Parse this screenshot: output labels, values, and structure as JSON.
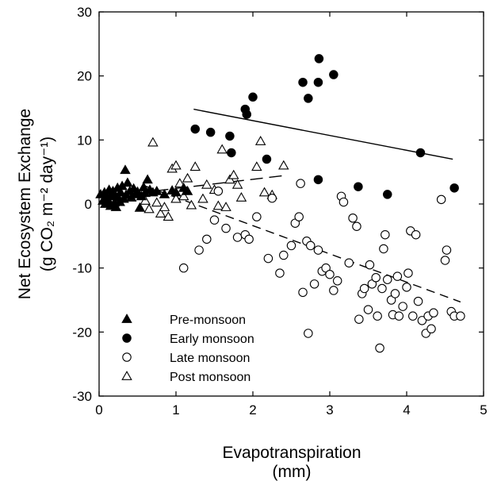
{
  "chart_data": {
    "type": "scatter",
    "xlabel_line1": "Evapotranspiration",
    "xlabel_line2": "(mm)",
    "ylabel_line1": "Net Ecosystem Exchange",
    "ylabel_line2": "(g CO₂ m⁻² day⁻¹)",
    "xlim": [
      0,
      5
    ],
    "ylim": [
      -30,
      30
    ],
    "xticks": [
      0,
      1,
      2,
      3,
      4,
      5
    ],
    "yticks": [
      -30,
      -20,
      -10,
      0,
      10,
      20,
      30
    ],
    "grid": false,
    "legend_position": "bottom-left",
    "series": [
      {
        "name": "Pre-monsoon",
        "marker": "triangle-filled",
        "points": [
          [
            0.02,
            1.5
          ],
          [
            0.05,
            0.5
          ],
          [
            0.07,
            1.8
          ],
          [
            0.08,
            0.0
          ],
          [
            0.1,
            1.0
          ],
          [
            0.12,
            0.5
          ],
          [
            0.13,
            2.2
          ],
          [
            0.15,
            -0.3
          ],
          [
            0.16,
            1.2
          ],
          [
            0.18,
            2.0
          ],
          [
            0.2,
            0.2
          ],
          [
            0.2,
            1.6
          ],
          [
            0.22,
            -0.5
          ],
          [
            0.24,
            2.5
          ],
          [
            0.25,
            1.0
          ],
          [
            0.27,
            0.3
          ],
          [
            0.28,
            1.8
          ],
          [
            0.3,
            2.8
          ],
          [
            0.32,
            0.8
          ],
          [
            0.34,
            5.3
          ],
          [
            0.35,
            1.4
          ],
          [
            0.37,
            3.3
          ],
          [
            0.4,
            2.0
          ],
          [
            0.42,
            1.0
          ],
          [
            0.45,
            2.4
          ],
          [
            0.48,
            1.5
          ],
          [
            0.5,
            1.9
          ],
          [
            0.53,
            -0.6
          ],
          [
            0.55,
            1.2
          ],
          [
            0.58,
            2.6
          ],
          [
            0.6,
            1.7
          ],
          [
            0.63,
            3.8
          ],
          [
            0.66,
            2.2
          ],
          [
            0.7,
            1.8
          ],
          [
            0.75,
            2.0
          ],
          [
            0.85,
            1.5
          ],
          [
            0.95,
            2.1
          ],
          [
            1.0,
            1.8
          ],
          [
            1.1,
            2.5
          ],
          [
            1.15,
            2.0
          ]
        ]
      },
      {
        "name": "Early monsoon",
        "marker": "circle-filled",
        "points": [
          [
            1.25,
            11.7
          ],
          [
            1.45,
            11.2
          ],
          [
            1.7,
            10.6
          ],
          [
            1.72,
            8.0
          ],
          [
            1.9,
            14.8
          ],
          [
            1.92,
            14.0
          ],
          [
            2.0,
            16.7
          ],
          [
            2.18,
            7.0
          ],
          [
            2.65,
            19.0
          ],
          [
            2.72,
            16.5
          ],
          [
            2.85,
            19.0
          ],
          [
            2.86,
            22.7
          ],
          [
            3.05,
            20.2
          ],
          [
            2.85,
            3.8
          ],
          [
            3.37,
            2.7
          ],
          [
            3.75,
            1.5
          ],
          [
            4.18,
            8.0
          ],
          [
            4.62,
            2.5
          ]
        ]
      },
      {
        "name": "Late monsoon",
        "marker": "circle-open",
        "points": [
          [
            1.1,
            -10.0
          ],
          [
            1.3,
            -7.2
          ],
          [
            1.4,
            -5.5
          ],
          [
            1.5,
            -2.5
          ],
          [
            1.55,
            2.0
          ],
          [
            1.65,
            -3.8
          ],
          [
            1.8,
            -5.2
          ],
          [
            1.9,
            -4.8
          ],
          [
            1.95,
            -5.5
          ],
          [
            2.05,
            -2.0
          ],
          [
            2.2,
            -8.5
          ],
          [
            2.25,
            0.9
          ],
          [
            2.35,
            -10.8
          ],
          [
            2.4,
            -8.0
          ],
          [
            2.5,
            -6.5
          ],
          [
            2.55,
            -3.0
          ],
          [
            2.6,
            -2.0
          ],
          [
            2.62,
            3.2
          ],
          [
            2.65,
            -13.8
          ],
          [
            2.7,
            -5.8
          ],
          [
            2.72,
            -20.2
          ],
          [
            2.75,
            -6.5
          ],
          [
            2.8,
            -12.5
          ],
          [
            2.85,
            -7.2
          ],
          [
            2.9,
            -10.5
          ],
          [
            2.95,
            -10.0
          ],
          [
            3.0,
            -11.0
          ],
          [
            3.05,
            -13.5
          ],
          [
            3.1,
            -12.0
          ],
          [
            3.15,
            1.2
          ],
          [
            3.18,
            0.3
          ],
          [
            3.25,
            -9.2
          ],
          [
            3.3,
            -2.2
          ],
          [
            3.35,
            -3.5
          ],
          [
            3.38,
            -18.0
          ],
          [
            3.42,
            -14.0
          ],
          [
            3.45,
            -13.2
          ],
          [
            3.5,
            -16.5
          ],
          [
            3.52,
            -9.5
          ],
          [
            3.55,
            -12.5
          ],
          [
            3.6,
            -11.5
          ],
          [
            3.62,
            -17.5
          ],
          [
            3.65,
            -22.5
          ],
          [
            3.68,
            -13.2
          ],
          [
            3.7,
            -7.0
          ],
          [
            3.72,
            -4.8
          ],
          [
            3.75,
            -11.8
          ],
          [
            3.8,
            -15.0
          ],
          [
            3.82,
            -17.3
          ],
          [
            3.85,
            -14.0
          ],
          [
            3.88,
            -11.3
          ],
          [
            3.9,
            -17.5
          ],
          [
            3.95,
            -16.0
          ],
          [
            4.0,
            -13.0
          ],
          [
            4.02,
            -10.8
          ],
          [
            4.05,
            -4.2
          ],
          [
            4.08,
            -17.5
          ],
          [
            4.12,
            -4.8
          ],
          [
            4.15,
            -15.2
          ],
          [
            4.2,
            -18.2
          ],
          [
            4.25,
            -20.2
          ],
          [
            4.28,
            -17.5
          ],
          [
            4.32,
            -19.5
          ],
          [
            4.35,
            -17.0
          ],
          [
            4.45,
            0.7
          ],
          [
            4.5,
            -8.8
          ],
          [
            4.52,
            -7.2
          ],
          [
            4.58,
            -16.8
          ],
          [
            4.62,
            -17.5
          ],
          [
            4.7,
            -17.5
          ]
        ]
      },
      {
        "name": "Post monsoon",
        "marker": "triangle-open",
        "points": [
          [
            0.6,
            0.5
          ],
          [
            0.65,
            -0.8
          ],
          [
            0.7,
            9.6
          ],
          [
            0.75,
            0.2
          ],
          [
            0.8,
            -1.5
          ],
          [
            0.85,
            -0.5
          ],
          [
            0.9,
            -2.0
          ],
          [
            0.95,
            5.5
          ],
          [
            1.0,
            0.8
          ],
          [
            1.0,
            6.0
          ],
          [
            1.05,
            3.2
          ],
          [
            1.1,
            1.2
          ],
          [
            1.15,
            4.0
          ],
          [
            1.2,
            -0.2
          ],
          [
            1.25,
            5.8
          ],
          [
            1.35,
            0.8
          ],
          [
            1.4,
            3.0
          ],
          [
            1.5,
            2.2
          ],
          [
            1.55,
            -0.3
          ],
          [
            1.6,
            8.5
          ],
          [
            1.65,
            -0.5
          ],
          [
            1.7,
            3.8
          ],
          [
            1.75,
            4.5
          ],
          [
            1.8,
            3.0
          ],
          [
            1.85,
            1.0
          ],
          [
            2.05,
            5.8
          ],
          [
            2.1,
            9.8
          ],
          [
            2.15,
            1.8
          ],
          [
            2.25,
            1.4
          ],
          [
            2.4,
            6.0
          ]
        ]
      }
    ],
    "fit_lines": [
      {
        "series": "Early monsoon",
        "style": "solid",
        "points": [
          [
            1.23,
            14.8
          ],
          [
            4.6,
            7.0
          ]
        ]
      },
      {
        "series": "Pre-monsoon",
        "style": "long-dash",
        "points": [
          [
            0.0,
            1.0
          ],
          [
            2.45,
            4.5
          ]
        ]
      },
      {
        "series": "Late monsoon",
        "style": "dash",
        "points": [
          [
            0.6,
            2.8
          ],
          [
            4.7,
            -15.3
          ]
        ]
      }
    ]
  }
}
